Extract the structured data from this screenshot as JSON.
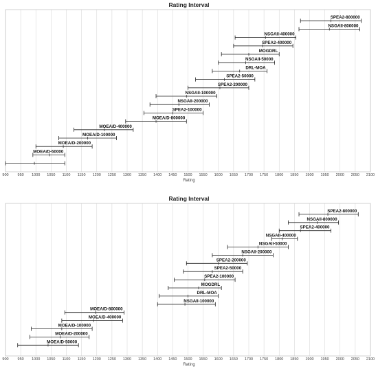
{
  "chart_data": [
    {
      "type": "interval",
      "title": "Rating Interval",
      "xlabel": "Rating",
      "xlim": [
        900,
        2100
      ],
      "xticks": [
        "900",
        "950",
        "1000",
        "1050",
        "1100",
        "1150",
        "1200",
        "1250",
        "1300",
        "1350",
        "1400",
        "1450",
        "1500",
        "1550",
        "1600",
        "1650",
        "1700",
        "1750",
        "1800",
        "1850",
        "1900",
        "1950",
        "2000",
        "2050",
        "2100"
      ],
      "intervals": [
        {
          "label": "SPEA2-800000",
          "low": 1870,
          "mid": 1970,
          "high": 2070
        },
        {
          "label": "NSGAII-800000",
          "low": 1865,
          "mid": 1965,
          "high": 2065
        },
        {
          "label": "NSGAII-400000",
          "low": 1655,
          "mid": 1755,
          "high": 1855
        },
        {
          "label": "SPEA2-400000",
          "low": 1650,
          "mid": 1745,
          "high": 1845
        },
        {
          "label": "MOGDRL",
          "low": 1610,
          "mid": 1700,
          "high": 1800
        },
        {
          "label": "NSGAII-50000",
          "low": 1600,
          "mid": 1690,
          "high": 1785
        },
        {
          "label": "DRL-MOA",
          "low": 1580,
          "mid": 1670,
          "high": 1760
        },
        {
          "label": "SPEA2-50000",
          "low": 1525,
          "mid": 1620,
          "high": 1720
        },
        {
          "label": "SPEA2-200000",
          "low": 1500,
          "mid": 1605,
          "high": 1700
        },
        {
          "label": "NSGAII-100000",
          "low": 1395,
          "mid": 1495,
          "high": 1595
        },
        {
          "label": "NSGAII-200000",
          "low": 1375,
          "mid": 1470,
          "high": 1570
        },
        {
          "label": "SPEA2-100000",
          "low": 1355,
          "mid": 1450,
          "high": 1550
        },
        {
          "label": "MOEA/D-800000",
          "low": 1295,
          "mid": 1395,
          "high": 1495
        },
        {
          "label": "MOEA/D-400000",
          "low": 1125,
          "mid": 1225,
          "high": 1320
        },
        {
          "label": "MOEA/D-100000",
          "low": 1075,
          "mid": 1170,
          "high": 1265
        },
        {
          "label": "MOEA/D-200000",
          "low": 1000,
          "mid": 1090,
          "high": 1185
        },
        {
          "label": "MOEA/D-50000",
          "low": 990,
          "mid": 1045,
          "high": 1095
        },
        {
          "label": "",
          "low": 900,
          "mid": 995,
          "high": 1095
        }
      ]
    },
    {
      "type": "interval",
      "title": "Rating Interval",
      "xlabel": "Rating",
      "xlim": [
        900,
        2100
      ],
      "xticks": [
        "900",
        "950",
        "1000",
        "1050",
        "1100",
        "1150",
        "1200",
        "1250",
        "1300",
        "1350",
        "1400",
        "1450",
        "1500",
        "1550",
        "1600",
        "1650",
        "1700",
        "1750",
        "1800",
        "1850",
        "1900",
        "1950",
        "2000",
        "2050",
        "2100"
      ],
      "intervals": [
        {
          "label": "SPEA2-800000",
          "low": 1865,
          "mid": 1960,
          "high": 2060
        },
        {
          "label": "NSGAII-800000",
          "low": 1830,
          "mid": 1925,
          "high": 1995
        },
        {
          "label": "SPEA2-400000",
          "low": 1800,
          "mid": 1870,
          "high": 1970
        },
        {
          "label": "NSGAII-400000",
          "low": 1775,
          "mid": 1810,
          "high": 1860
        },
        {
          "label": "NSGAII-50000",
          "low": 1630,
          "mid": 1730,
          "high": 1830
        },
        {
          "label": "NSGAII-200000",
          "low": 1580,
          "mid": 1680,
          "high": 1780
        },
        {
          "label": "SPEA2-200000",
          "low": 1495,
          "mid": 1600,
          "high": 1695
        },
        {
          "label": "SPEA2-50000",
          "low": 1485,
          "mid": 1580,
          "high": 1680
        },
        {
          "label": "SPEA2-100000",
          "low": 1455,
          "mid": 1555,
          "high": 1655
        },
        {
          "label": "MOGDRL",
          "low": 1435,
          "mid": 1535,
          "high": 1610
        },
        {
          "label": "DRL-MOA",
          "low": 1405,
          "mid": 1500,
          "high": 1600
        },
        {
          "label": "NSGAII-100000",
          "low": 1400,
          "mid": 1490,
          "high": 1590
        },
        {
          "label": "MOEA/D-800000",
          "low": 1095,
          "mid": 1195,
          "high": 1290
        },
        {
          "label": "MOEA/D-400000",
          "low": 1085,
          "mid": 1190,
          "high": 1285
        },
        {
          "label": "MOEA/D-100000",
          "low": 985,
          "mid": 1085,
          "high": 1185
        },
        {
          "label": "MOEA/D-200000",
          "low": 980,
          "mid": 1080,
          "high": 1175
        },
        {
          "label": "MOEA/D-50000",
          "low": 940,
          "mid": 1040,
          "high": 1140
        }
      ]
    }
  ]
}
